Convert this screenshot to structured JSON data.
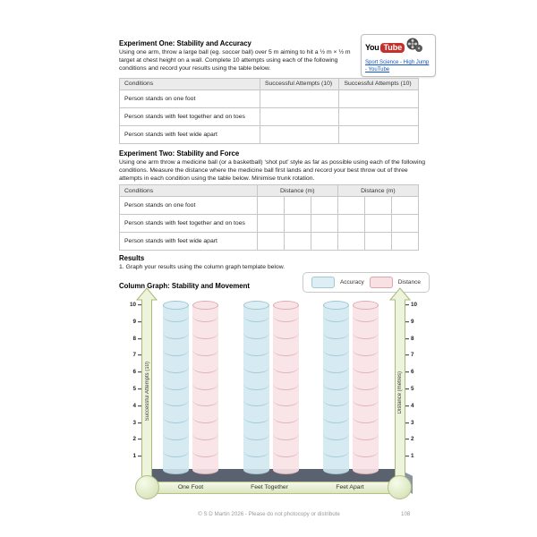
{
  "experiment_one": {
    "title": "Experiment One: Stability and Accuracy",
    "description": "Using one arm, throw a large ball (eg. soccer ball) over 5 m aiming to hit a ½ m × ½ m target at chest height on a wall. Complete 10 attempts using each of the following conditions and record your results using the table below."
  },
  "experiment_two": {
    "title": "Experiment Two: Stability and Force",
    "description": "Using one arm throw a medicine ball (or a basketball) ‘shot put’ style as far as possible using each of the following conditions. Measure the distance where the medicine ball first lands and record your best throw out of three attempts in each condition using the table below. Minimise trunk rotation."
  },
  "youtube": {
    "logo_you": "You",
    "logo_tube": "Tube",
    "reel_icon": "film-reel-icon",
    "link_text": "Sport Science - High Jump - YouTube"
  },
  "table_one": {
    "col_conditions": "Conditions",
    "col_a": "Successful Attempts (10)",
    "col_b": "Successful Attempts (10)",
    "rows": [
      "Person stands on one foot",
      "Person stands with feet together and on toes",
      "Person stands with feet wide apart"
    ]
  },
  "table_two": {
    "col_conditions": "Conditions",
    "col_a": "Distance (m)",
    "col_b": "Distance (m)",
    "rows": [
      "Person stands on one foot",
      "Person stands with feet together and on toes",
      "Person stands with feet wide apart"
    ]
  },
  "results": {
    "title": "Results",
    "step1": "1. Graph your results using the column graph template below."
  },
  "graph": {
    "title": "Column Graph: Stability and Movement",
    "legend": [
      {
        "label": "Accuracy",
        "color": "#ddeef5"
      },
      {
        "label": "Distance",
        "color": "#f8e0e3"
      }
    ],
    "left_axis_label": "Successful Attempts (10)",
    "right_axis_label": "Distance (metres)",
    "y_ticks": [
      "10",
      "9",
      "8",
      "7",
      "6",
      "5",
      "4",
      "3",
      "2",
      "1"
    ],
    "x_labels": [
      "One Foot",
      "Feet Together",
      "Feet Apart"
    ],
    "axis_color": "#eef3dc",
    "platform_color": "#59626e"
  },
  "chart_data": {
    "type": "bar",
    "subtype": "blank-template-cylinder-columns",
    "title": "Column Graph: Stability and Movement",
    "categories": [
      "One Foot",
      "Feet Together",
      "Feet Apart"
    ],
    "series": [
      {
        "name": "Accuracy",
        "color": "#d0e7f0",
        "values": [
          10,
          10,
          10
        ],
        "note": "empty template columns drawn full height with unit segment lines"
      },
      {
        "name": "Distance",
        "color": "#f8e2e5",
        "values": [
          10,
          10,
          10
        ],
        "note": "empty template columns drawn full height with unit segment lines"
      }
    ],
    "ylabel_left": "Successful Attempts (10)",
    "ylabel_right": "Distance (metres)",
    "ylim": [
      0,
      10
    ],
    "yticks": [
      1,
      2,
      3,
      4,
      5,
      6,
      7,
      8,
      9,
      10
    ],
    "legend_position": "top-right",
    "grid": false
  },
  "footer": {
    "text": "© S D Martin 2026 - Please do not photocopy or distribute",
    "page_number": "108"
  }
}
